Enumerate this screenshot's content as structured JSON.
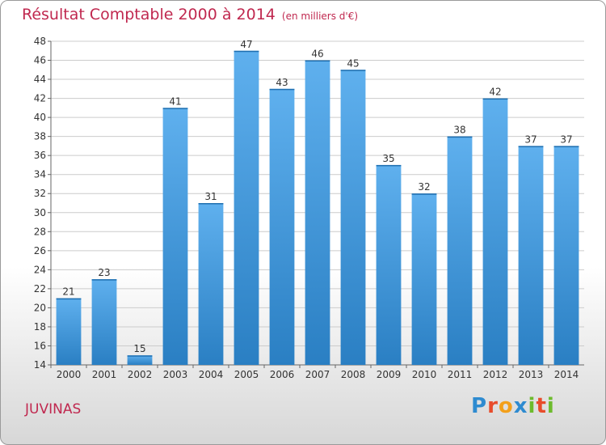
{
  "title": "Résultat Comptable 2000 à 2014",
  "unit_note": "(en milliers d'€)",
  "commune": "JUVINAS",
  "logo": {
    "text": "Proxiti",
    "letters": [
      {
        "ch": "P",
        "color": "#2e8bd0"
      },
      {
        "ch": "r",
        "color": "#e84c2b"
      },
      {
        "ch": "o",
        "color": "#f3a01b"
      },
      {
        "ch": "x",
        "color": "#2e8bd0"
      },
      {
        "ch": "i",
        "color": "#6dbb2d"
      },
      {
        "ch": "t",
        "color": "#e84c2b"
      },
      {
        "ch": "i",
        "color": "#6dbb2d"
      }
    ]
  },
  "colors": {
    "title": "#c0284f",
    "bar_light": "#5fb0ee",
    "bar_dark": "#2a7fc3",
    "grid": "#cccccc",
    "axis": "#666666"
  },
  "chart_data": {
    "type": "bar",
    "title": "Résultat Comptable 2000 à 2014",
    "xlabel": "",
    "ylabel": "",
    "categories": [
      "2000",
      "2001",
      "2002",
      "2003",
      "2004",
      "2005",
      "2006",
      "2007",
      "2008",
      "2009",
      "2010",
      "2011",
      "2012",
      "2013",
      "2014"
    ],
    "values": [
      21,
      23,
      15,
      41,
      31,
      47,
      43,
      46,
      45,
      35,
      32,
      38,
      42,
      37,
      37
    ],
    "data_labels": [
      "21",
      "23",
      "15",
      "41",
      "31",
      "47",
      "43",
      "46",
      "45",
      "35",
      "32",
      "38",
      "42",
      "37",
      "37"
    ],
    "ylim": [
      14,
      48
    ],
    "yticks": [
      14,
      16,
      18,
      20,
      22,
      24,
      26,
      28,
      30,
      32,
      34,
      36,
      38,
      40,
      42,
      44,
      46,
      48
    ],
    "grid": true,
    "legend": "none"
  }
}
